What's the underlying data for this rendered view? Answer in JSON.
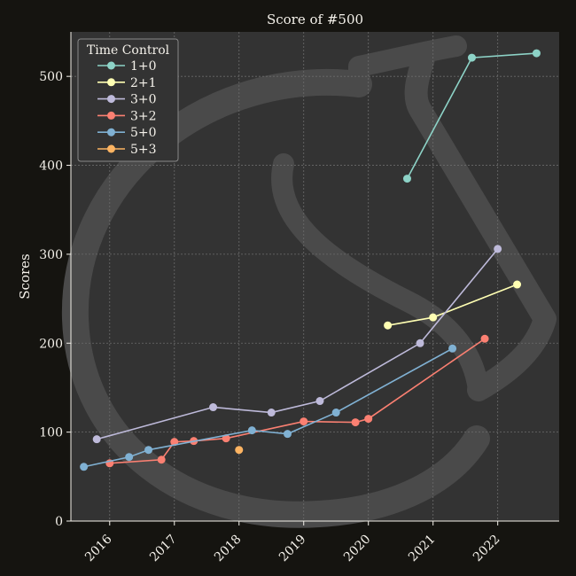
{
  "chart_data": {
    "type": "line",
    "title": "Score of #500",
    "xlabel": "",
    "ylabel": "Scores",
    "xlim": [
      2015.4,
      2022.95
    ],
    "ylim": [
      0,
      550
    ],
    "xticks": [
      2016,
      2017,
      2018,
      2019,
      2020,
      2021,
      2022
    ],
    "xtick_labels": [
      "2016",
      "2017",
      "2018",
      "2019",
      "2020",
      "2021",
      "2022"
    ],
    "yticks": [
      0,
      100,
      200,
      300,
      400,
      500
    ],
    "ytick_labels": [
      "0",
      "100",
      "200",
      "300",
      "400",
      "500"
    ],
    "grid": true,
    "legend": {
      "title": "Time Control",
      "placement": "top-left"
    },
    "series": [
      {
        "name": "1+0",
        "color": "#8dd3c7",
        "x": [
          2020.6,
          2021.6,
          2022.6
        ],
        "y": [
          385,
          521,
          526
        ]
      },
      {
        "name": "2+1",
        "color": "#ffffb3",
        "x": [
          2020.3,
          2021.0,
          2022.3
        ],
        "y": [
          220,
          229,
          266
        ]
      },
      {
        "name": "3+0",
        "color": "#bebada",
        "x": [
          2015.8,
          2017.6,
          2018.5,
          2019.25,
          2020.8,
          2022.0
        ],
        "y": [
          92,
          128,
          122,
          135,
          200,
          306
        ]
      },
      {
        "name": "3+2",
        "color": "#fb8072",
        "x": [
          2016.0,
          2016.8,
          2017.0,
          2017.3,
          2017.8,
          2019.0,
          2019.8,
          2020.0,
          2021.8
        ],
        "y": [
          65,
          69,
          89,
          90,
          93,
          112,
          111,
          115,
          205
        ]
      },
      {
        "name": "5+0",
        "color": "#80b1d3",
        "x": [
          2015.6,
          2016.3,
          2016.6,
          2018.2,
          2018.75,
          2019.5,
          2021.3
        ],
        "y": [
          61,
          72,
          80,
          102,
          98,
          122,
          194
        ]
      },
      {
        "name": "5+3",
        "color": "#fdb462",
        "x": [
          2018.0
        ],
        "y": [
          80
        ]
      }
    ]
  }
}
